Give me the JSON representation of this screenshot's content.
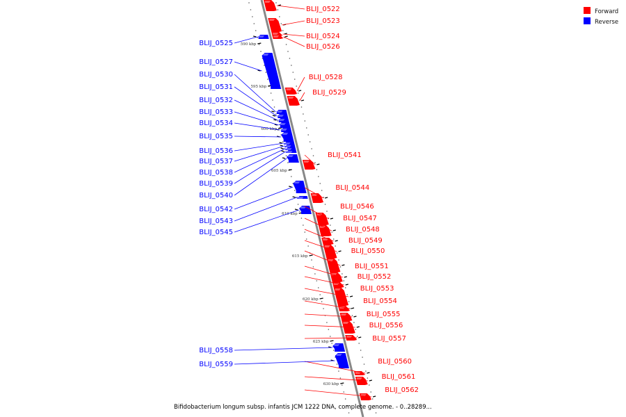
{
  "legend": {
    "forward_label": "Forward",
    "reverse_label": "Reverse",
    "forward_color": "#ff0000",
    "reverse_color": "#0000ff"
  },
  "caption": "Bifidobacterium longum subsp. infantis JCM 1222 DNA, complete genome. - 0..28289...",
  "backbone_color": "#888888",
  "ticks": [
    "590 kbp",
    "595 kbp",
    "600 kbp",
    "605 kbp",
    "610 kbp",
    "615 kbp",
    "620 kbp",
    "625 kbp",
    "630 kbp"
  ],
  "genes": [
    {
      "id": "BLIJ_0522",
      "strand": "forward"
    },
    {
      "id": "BLIJ_0523",
      "strand": "forward"
    },
    {
      "id": "BLIJ_0524",
      "strand": "forward"
    },
    {
      "id": "BLIJ_0526",
      "strand": "forward"
    },
    {
      "id": "BLIJ_0528",
      "strand": "forward"
    },
    {
      "id": "BLIJ_0529",
      "strand": "forward"
    },
    {
      "id": "BLIJ_0541",
      "strand": "forward"
    },
    {
      "id": "BLIJ_0544",
      "strand": "forward"
    },
    {
      "id": "BLIJ_0546",
      "strand": "forward"
    },
    {
      "id": "BLIJ_0547",
      "strand": "forward"
    },
    {
      "id": "BLIJ_0548",
      "strand": "forward"
    },
    {
      "id": "BLIJ_0549",
      "strand": "forward"
    },
    {
      "id": "BLIJ_0550",
      "strand": "forward"
    },
    {
      "id": "BLIJ_0551",
      "strand": "forward"
    },
    {
      "id": "BLIJ_0552",
      "strand": "forward"
    },
    {
      "id": "BLIJ_0553",
      "strand": "forward"
    },
    {
      "id": "BLIJ_0554",
      "strand": "forward"
    },
    {
      "id": "BLIJ_0555",
      "strand": "forward"
    },
    {
      "id": "BLIJ_0556",
      "strand": "forward"
    },
    {
      "id": "BLIJ_0557",
      "strand": "forward"
    },
    {
      "id": "BLIJ_0560",
      "strand": "forward"
    },
    {
      "id": "BLIJ_0561",
      "strand": "forward"
    },
    {
      "id": "BLIJ_0562",
      "strand": "forward"
    },
    {
      "id": "BLIJ_0525",
      "strand": "reverse"
    },
    {
      "id": "BLIJ_0527",
      "strand": "reverse"
    },
    {
      "id": "BLIJ_0530",
      "strand": "reverse"
    },
    {
      "id": "BLIJ_0531",
      "strand": "reverse"
    },
    {
      "id": "BLIJ_0532",
      "strand": "reverse"
    },
    {
      "id": "BLIJ_0533",
      "strand": "reverse"
    },
    {
      "id": "BLIJ_0534",
      "strand": "reverse"
    },
    {
      "id": "BLIJ_0535",
      "strand": "reverse"
    },
    {
      "id": "BLIJ_0536",
      "strand": "reverse"
    },
    {
      "id": "BLIJ_0537",
      "strand": "reverse"
    },
    {
      "id": "BLIJ_0538",
      "strand": "reverse"
    },
    {
      "id": "BLIJ_0539",
      "strand": "reverse"
    },
    {
      "id": "BLIJ_0540",
      "strand": "reverse"
    },
    {
      "id": "BLIJ_0542",
      "strand": "reverse"
    },
    {
      "id": "BLIJ_0543",
      "strand": "reverse"
    },
    {
      "id": "BLIJ_0545",
      "strand": "reverse"
    },
    {
      "id": "BLIJ_0558",
      "strand": "reverse"
    },
    {
      "id": "BLIJ_0559",
      "strand": "reverse"
    }
  ]
}
